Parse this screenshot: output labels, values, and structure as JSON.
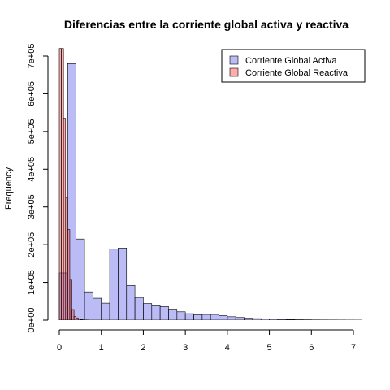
{
  "chart_data": {
    "type": "bar",
    "title": "Diferencias entre la corriente global activa y reactiva",
    "xlabel": "",
    "ylabel": "Frequency",
    "xlim": [
      0,
      7.2
    ],
    "ylim": [
      0,
      720000
    ],
    "x_ticks": [
      0,
      1,
      2,
      3,
      4,
      5,
      6,
      7
    ],
    "x_tick_labels": [
      "0",
      "1",
      "2",
      "3",
      "4",
      "5",
      "6",
      "7"
    ],
    "y_ticks": [
      0,
      100000,
      200000,
      300000,
      400000,
      500000,
      600000,
      700000
    ],
    "y_tick_labels": [
      "0e+00",
      "1e+05",
      "2e+05",
      "3e+05",
      "4e+05",
      "5e+05",
      "6e+05",
      "7e+05"
    ],
    "grid": false,
    "legend_position": "top-right",
    "series": [
      {
        "name": "Corriente Global Activa",
        "color": "#9999ee",
        "bin_width": 0.2,
        "bin_start": 0,
        "values": [
          125000,
          680000,
          215000,
          75000,
          58000,
          45000,
          188000,
          191000,
          92000,
          60000,
          44000,
          40000,
          36000,
          29000,
          22000,
          17000,
          14000,
          15000,
          15000,
          12000,
          9000,
          7000,
          5000,
          4000,
          3000,
          2500,
          2000,
          1500,
          1000,
          800,
          500,
          400,
          300,
          200,
          100,
          50
        ]
      },
      {
        "name": "Corriente Global Reactiva",
        "color": "#ff9999",
        "bin_width": 0.05,
        "bin_start": 0,
        "values": [
          720000,
          720000,
          535000,
          325000,
          240000,
          108000,
          28000,
          10000,
          6000,
          3000,
          1500,
          800,
          400,
          200
        ]
      }
    ]
  }
}
